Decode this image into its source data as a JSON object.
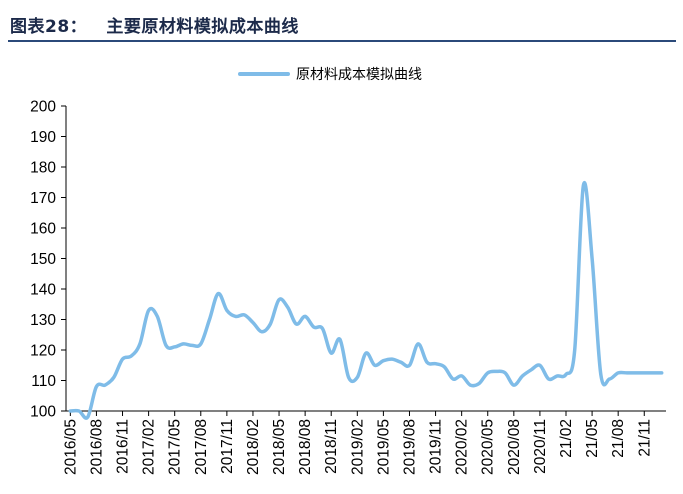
{
  "header": {
    "title": "图表28：   主要原材料模拟成本曲线"
  },
  "colors": {
    "series": "#7fbce8",
    "title": "#1c2a4a",
    "rule": "#2b4a7a",
    "axis": "#000000"
  },
  "chart_data": {
    "type": "line",
    "title": "",
    "xlabel": "",
    "ylabel": "",
    "ylim": [
      100,
      200
    ],
    "yticks": [
      100,
      110,
      120,
      130,
      140,
      150,
      160,
      170,
      180,
      190,
      200
    ],
    "grid": false,
    "legend_position": "top-center",
    "x_tick_labels": [
      "2016/05",
      "2016/08",
      "2016/11",
      "2017/02",
      "2017/05",
      "2017/08",
      "2017/11",
      "2018/02",
      "2018/05",
      "2018/08",
      "2018/11",
      "2019/02",
      "2019/05",
      "2019/08",
      "2019/11",
      "2020/02",
      "2020/05",
      "2020/08",
      "2020/11",
      "21/02",
      "21/05",
      "21/08",
      "21/11"
    ],
    "series": [
      {
        "name": "原材料成本模拟曲线",
        "x": [
          "2016/05",
          "2016/06",
          "2016/07",
          "2016/08",
          "2016/09",
          "2016/10",
          "2016/11",
          "2016/12",
          "2017/01",
          "2017/02",
          "2017/03",
          "2017/04",
          "2017/05",
          "2017/06",
          "2017/07",
          "2017/08",
          "2017/09",
          "2017/10",
          "2017/11",
          "2017/12",
          "2018/01",
          "2018/02",
          "2018/03",
          "2018/04",
          "2018/05",
          "2018/06",
          "2018/07",
          "2018/08",
          "2018/09",
          "2018/10",
          "2018/11",
          "2018/12",
          "2019/01",
          "2019/02",
          "2019/03",
          "2019/04",
          "2019/05",
          "2019/06",
          "2019/07",
          "2019/08",
          "2019/09",
          "2019/10",
          "2019/11",
          "2019/12",
          "2020/01",
          "2020/02",
          "2020/03",
          "2020/04",
          "2020/05",
          "2020/06",
          "2020/07",
          "2020/08",
          "2020/09",
          "2020/10",
          "2020/11",
          "2020/12",
          "2021/01",
          "2021/02",
          "2021/03",
          "2021/04",
          "2021/05",
          "2021/06",
          "2021/07",
          "2021/08",
          "2021/09",
          "2021/10",
          "2021/11",
          "2021/12",
          "2022/01"
        ],
        "values": [
          100,
          100,
          98,
          108,
          108.5,
          111,
          117,
          118,
          122,
          133,
          131,
          121.5,
          121,
          122,
          121.5,
          122,
          130,
          138.5,
          133,
          131,
          131.5,
          129,
          126,
          128.5,
          136.5,
          134,
          128.5,
          131,
          127.5,
          127,
          119,
          123.5,
          111,
          111,
          119,
          115,
          116.5,
          117,
          116,
          115,
          122,
          116,
          115.5,
          114.5,
          110.5,
          111.5,
          108.5,
          109,
          112.5,
          113,
          112.5,
          108.5,
          111.5,
          113.5,
          115,
          110.5,
          111.5,
          112,
          120,
          174,
          150,
          112,
          110.5,
          112.5,
          112.5,
          112.5,
          112.5,
          112.5,
          112.5
        ]
      }
    ]
  }
}
